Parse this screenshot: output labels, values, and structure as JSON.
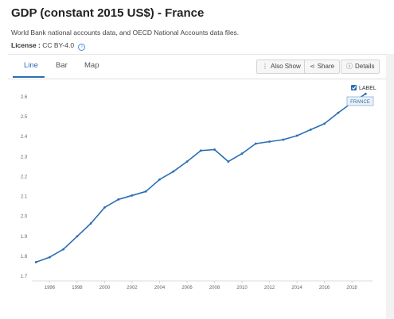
{
  "header": {
    "title": "GDP (constant 2015 US$) - France",
    "source": "World Bank national accounts data, and OECD National Accounts data files.",
    "license_label": "License :",
    "license_value": "CC BY-4.0",
    "info_icon": "info-circle-icon"
  },
  "tabs": [
    {
      "label": "Line",
      "active": true
    },
    {
      "label": "Bar",
      "active": false
    },
    {
      "label": "Map",
      "active": false
    }
  ],
  "toolbar": {
    "also_show": "Also Show",
    "share": "Share",
    "details": "Details"
  },
  "legend": {
    "checkbox_label": "LABEL",
    "checked": true
  },
  "colors": {
    "line": "#2a6eb5",
    "accent": "#2a6eb5",
    "tag_bg": "#e9f1fa",
    "tag_border": "#8fb1d6"
  },
  "chart_data": {
    "type": "line",
    "title": "",
    "xlabel": "",
    "ylabel": "",
    "x": [
      1995,
      1996,
      1997,
      1998,
      1999,
      2000,
      2001,
      2002,
      2003,
      2004,
      2005,
      2006,
      2007,
      2008,
      2009,
      2010,
      2011,
      2012,
      2013,
      2014,
      2015,
      2016,
      2017,
      2018,
      2019
    ],
    "series": [
      {
        "name": "FRANCE",
        "values": [
          1.77,
          1.795,
          1.835,
          1.9,
          1.965,
          2.045,
          2.085,
          2.105,
          2.125,
          2.185,
          2.225,
          2.275,
          2.33,
          2.335,
          2.275,
          2.315,
          2.365,
          2.375,
          2.385,
          2.405,
          2.435,
          2.465,
          2.52,
          2.57,
          2.615
        ]
      }
    ],
    "xticks": [
      "1996",
      "1998",
      "2000",
      "2002",
      "2004",
      "2006",
      "2008",
      "2010",
      "2012",
      "2014",
      "2016",
      "2018"
    ],
    "yticks": [
      "1.7",
      "1.8",
      "1.9",
      "2.0",
      "2.1",
      "2.2",
      "2.3",
      "2.4",
      "2.5",
      "2.6"
    ],
    "xlim": [
      1994.7,
      2019.5
    ],
    "ylim": [
      1.7,
      2.6
    ],
    "grid": false,
    "legend": "top-right"
  }
}
